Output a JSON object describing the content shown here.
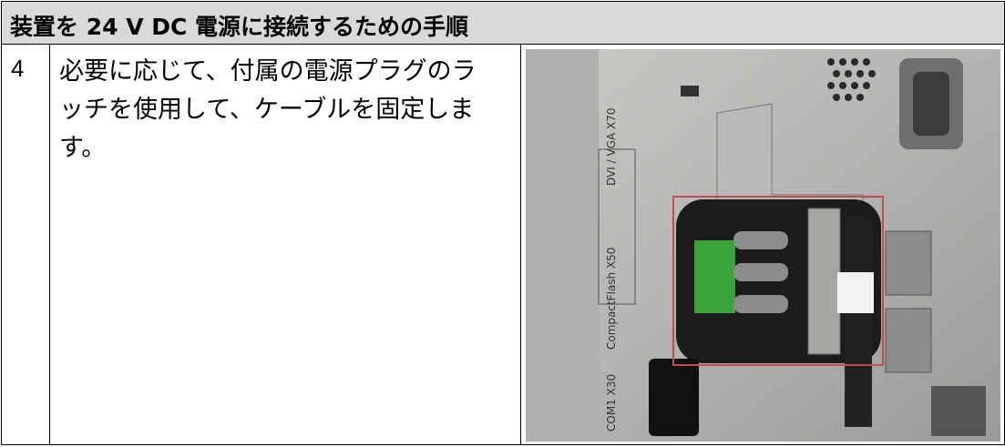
{
  "header": {
    "title": "装置を 24 V DC 電源に接続するための手順"
  },
  "steps": [
    {
      "number": "4",
      "text": "必要に応じて、付属の電源プラグのラッチを使用して、ケーブルを固定します。"
    }
  ],
  "photo_labels": [
    "DVI / VGA X70",
    "CompactFlash X50",
    "COM1 X30"
  ]
}
